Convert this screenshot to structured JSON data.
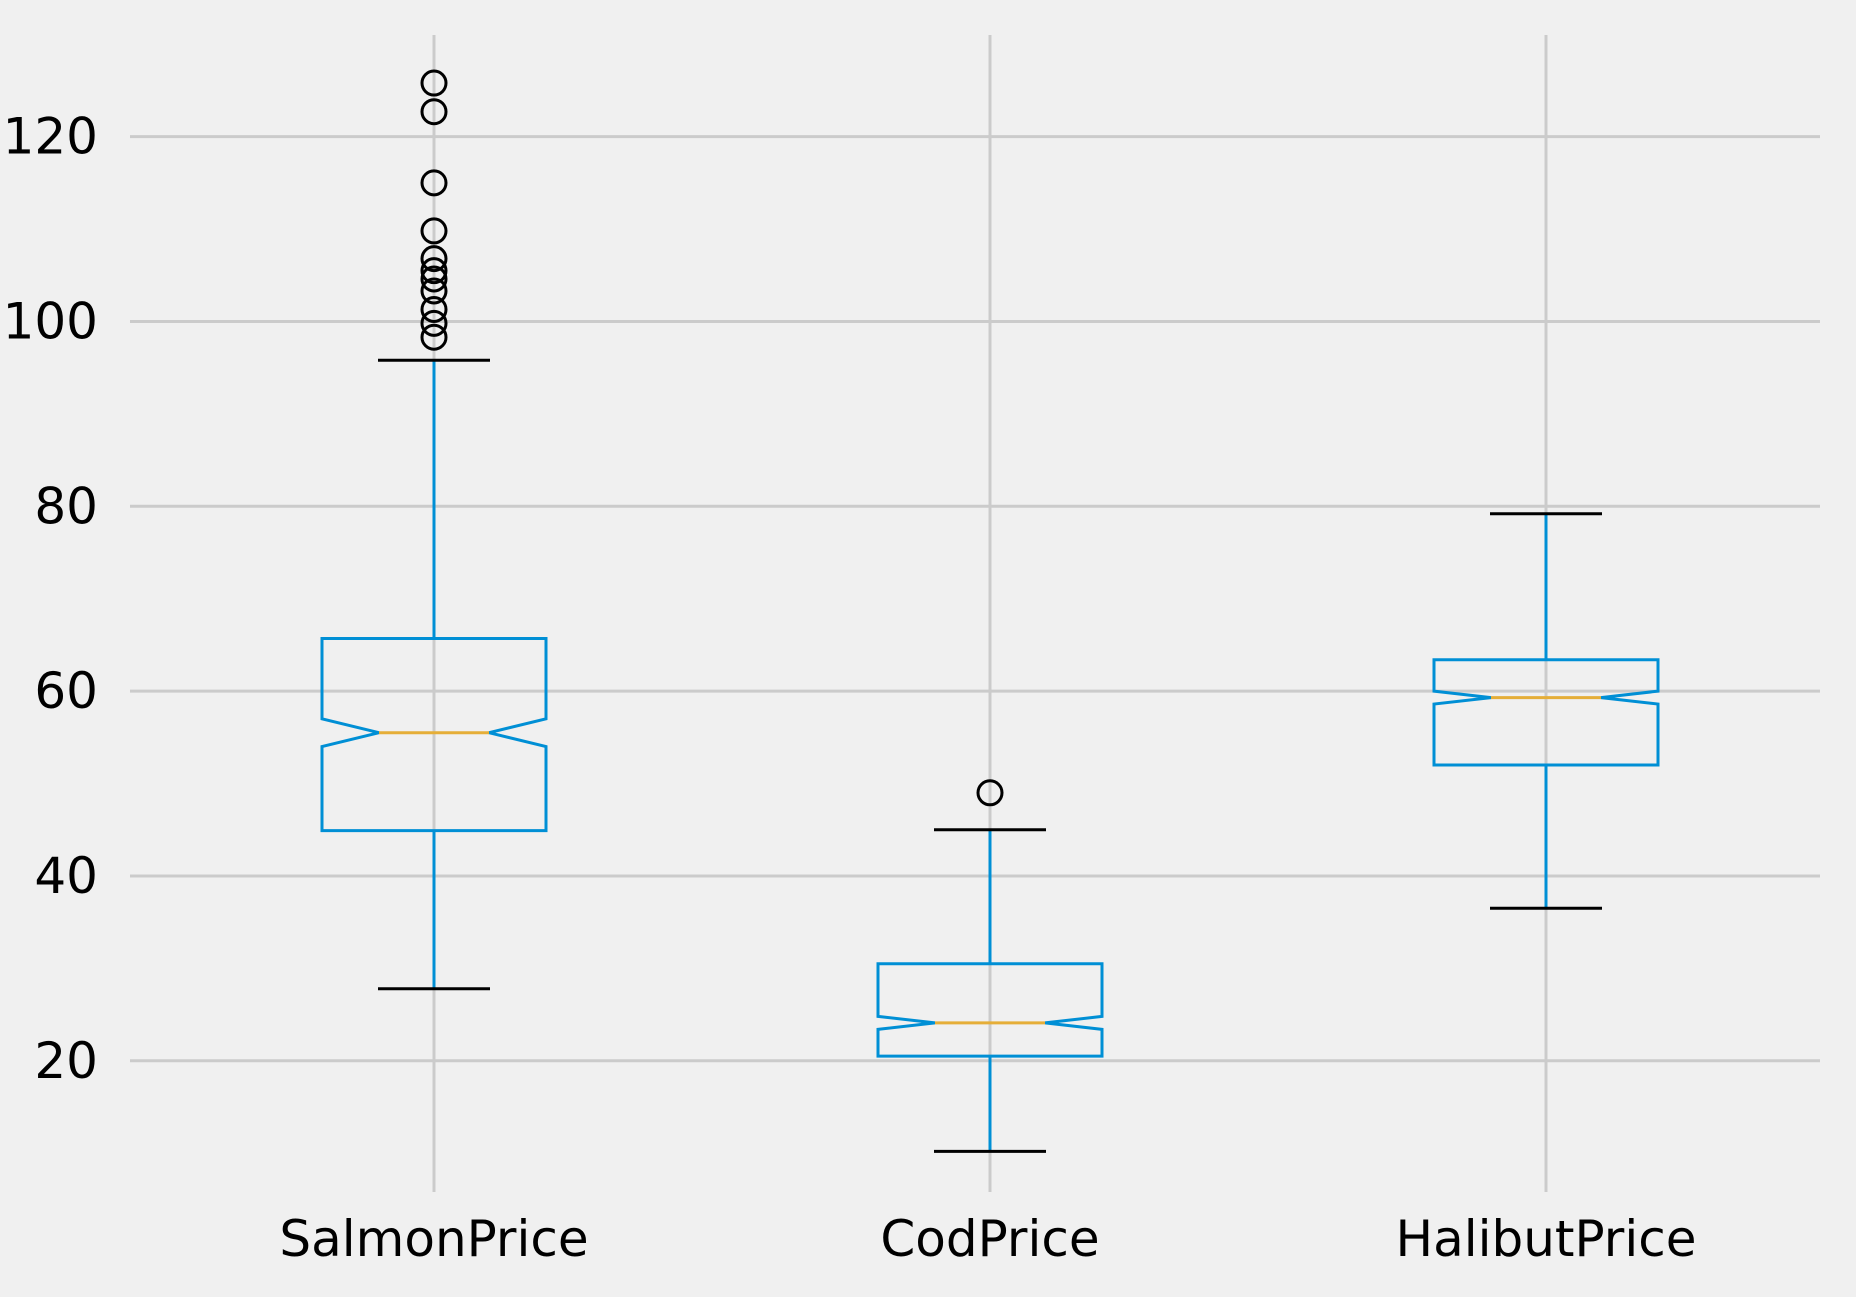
{
  "chart_data": {
    "type": "box",
    "notched": true,
    "grid": true,
    "colors": {
      "background": "#f0f0f0",
      "grid": "#cbcbcb",
      "box": "#008fd5",
      "median": "#e5ae38",
      "cap": "#000000",
      "flier": "#000000"
    },
    "ylim": [
      5.8,
      131
    ],
    "yticks": [
      20,
      40,
      60,
      80,
      100,
      120
    ],
    "categories": [
      "SalmonPrice",
      "CodPrice",
      "HalibutPrice"
    ],
    "series": [
      {
        "whisker_low": 27.8,
        "q1": 44.9,
        "notch_low": 54.0,
        "median": 55.5,
        "notch_high": 57.0,
        "q3": 65.7,
        "whisker_high": 95.8,
        "fliers": [
          98.3,
          99.8,
          101.3,
          103.3,
          104.6,
          105.5,
          106.8,
          109.8,
          115.0,
          122.7,
          125.8
        ]
      },
      {
        "whisker_low": 10.2,
        "q1": 20.5,
        "notch_low": 23.4,
        "median": 24.1,
        "notch_high": 24.8,
        "q3": 30.5,
        "whisker_high": 45.0,
        "fliers": [
          49.0
        ]
      },
      {
        "whisker_low": 36.5,
        "q1": 52.0,
        "notch_low": 58.6,
        "median": 59.3,
        "notch_high": 60.0,
        "q3": 63.4,
        "whisker_high": 79.2,
        "fliers": []
      }
    ]
  }
}
